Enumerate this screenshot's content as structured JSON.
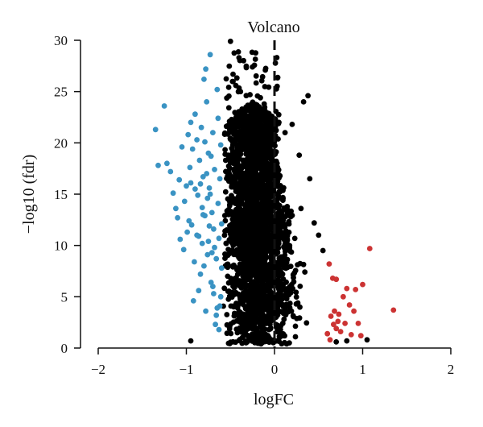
{
  "chart_data": {
    "type": "scatter",
    "title": "Volcano",
    "xlabel": "logFC",
    "ylabel": "−log10 (fdr)",
    "xlim": [
      -2,
      2
    ],
    "ylim": [
      0,
      30
    ],
    "x_ticks": [
      "−2",
      "−1",
      "0",
      "1",
      "2"
    ],
    "y_ticks": [
      "0",
      "5",
      "10",
      "15",
      "20",
      "25",
      "30"
    ],
    "threshold_line_x": 0,
    "colors": {
      "downregulated": "#3a93c3",
      "not_significant": "#000000",
      "upregulated": "#cc3333"
    },
    "series": [
      {
        "points": [
          [
            -1.35,
            21.3
          ],
          [
            -1.32,
            17.8
          ],
          [
            -1.25,
            23.6
          ],
          [
            -1.22,
            18.0
          ],
          [
            -1.18,
            17.2
          ],
          [
            -1.15,
            15.1
          ],
          [
            -1.12,
            13.6
          ],
          [
            -1.1,
            12.7
          ],
          [
            -1.07,
            10.6
          ],
          [
            -1.03,
            9.6
          ],
          [
            -1.02,
            14.3
          ],
          [
            -0.98,
            20.8
          ],
          [
            -0.97,
            12.4
          ],
          [
            -0.95,
            16.1
          ],
          [
            -0.93,
            19.4
          ],
          [
            -0.92,
            4.6
          ],
          [
            -0.91,
            8.4
          ],
          [
            -0.9,
            22.8
          ],
          [
            -0.88,
            11.0
          ],
          [
            -0.87,
            14.9
          ],
          [
            -0.86,
            5.6
          ],
          [
            -0.85,
            18.3
          ],
          [
            -0.84,
            7.2
          ],
          [
            -0.83,
            21.5
          ],
          [
            -0.82,
            10.2
          ],
          [
            -0.81,
            16.7
          ],
          [
            -0.8,
            26.2
          ],
          [
            -0.79,
            12.9
          ],
          [
            -0.78,
            3.6
          ],
          [
            -0.77,
            24.0
          ],
          [
            -0.76,
            9.1
          ],
          [
            -0.75,
            19.0
          ],
          [
            -0.74,
            15.6
          ],
          [
            -0.73,
            28.6
          ],
          [
            -0.72,
            6.4
          ],
          [
            -0.71,
            13.2
          ],
          [
            -0.7,
            21.0
          ],
          [
            -0.69,
            11.6
          ],
          [
            -0.68,
            17.4
          ],
          [
            -0.67,
            2.3
          ],
          [
            -0.66,
            8.7
          ],
          [
            -0.65,
            25.2
          ],
          [
            -0.64,
            14.1
          ],
          [
            -0.63,
            10.7
          ],
          [
            -0.62,
            4.1
          ],
          [
            -0.61,
            19.8
          ],
          [
            -0.6,
            7.8
          ],
          [
            -0.6,
            12.1
          ],
          [
            -0.62,
            16.5
          ],
          [
            -0.64,
            22.4
          ],
          [
            -0.66,
            3.2
          ],
          [
            -0.68,
            9.8
          ],
          [
            -0.7,
            6.0
          ],
          [
            -0.72,
            18.7
          ],
          [
            -0.74,
            11.9
          ],
          [
            -0.76,
            14.6
          ],
          [
            -0.78,
            27.2
          ],
          [
            -0.8,
            8.0
          ],
          [
            -0.82,
            13.7
          ],
          [
            -0.84,
            16.0
          ],
          [
            -0.86,
            10.9
          ],
          [
            -0.88,
            20.3
          ],
          [
            -0.9,
            15.5
          ],
          [
            -0.94,
            12.0
          ],
          [
            -0.96,
            17.6
          ],
          [
            -1.0,
            15.8
          ],
          [
            -1.05,
            19.6
          ],
          [
            -1.08,
            16.4
          ],
          [
            -0.99,
            11.3
          ],
          [
            -0.95,
            22.0
          ],
          [
            -0.61,
            5.0
          ],
          [
            -0.63,
            1.8
          ],
          [
            -0.65,
            3.9
          ],
          [
            -0.69,
            5.3
          ],
          [
            -0.71,
            9.3
          ],
          [
            -0.73,
            15.0
          ],
          [
            -0.75,
            10.4
          ],
          [
            -0.77,
            17.0
          ],
          [
            -0.79,
            20.1
          ],
          [
            -0.81,
            13.0
          ]
        ]
      },
      {
        "points": [
          [
            0.62,
            8.2
          ],
          [
            0.66,
            6.8
          ],
          [
            0.7,
            6.7
          ],
          [
            0.82,
            5.8
          ],
          [
            0.78,
            5.0
          ],
          [
            0.92,
            5.7
          ],
          [
            1.08,
            9.7
          ],
          [
            1.35,
            3.7
          ],
          [
            1.0,
            6.2
          ],
          [
            0.73,
            3.3
          ],
          [
            0.85,
            4.2
          ],
          [
            0.9,
            3.6
          ],
          [
            0.95,
            2.4
          ],
          [
            0.64,
            3.1
          ],
          [
            0.67,
            2.3
          ],
          [
            0.7,
            1.9
          ],
          [
            0.75,
            1.6
          ],
          [
            0.8,
            2.4
          ],
          [
            0.87,
            1.3
          ],
          [
            0.98,
            1.2
          ],
          [
            0.6,
            1.4
          ],
          [
            0.63,
            0.8
          ],
          [
            0.72,
            2.6
          ],
          [
            0.68,
            3.6
          ]
        ]
      }
    ]
  }
}
